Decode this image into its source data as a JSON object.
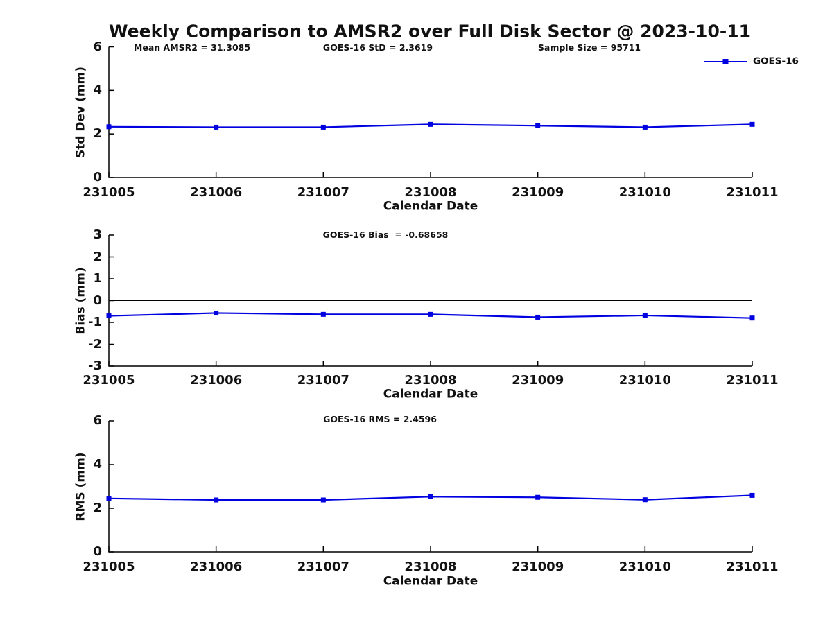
{
  "title": "Weekly Comparison to AMSR2 over Full Disk Sector @ 2023-10-11",
  "legend": {
    "label": "GOES-16",
    "position": "top-right-outside",
    "marker": "filled-square"
  },
  "colors": {
    "series_line": "#0000e0",
    "axis": "#000000",
    "zero_line": "#000000",
    "text": "#111111",
    "background": "#ffffff"
  },
  "chart_data": [
    {
      "type": "line",
      "annotations": [
        "Mean AMSR2 = 31.3085",
        "GOES-16 StD = 2.3619",
        "Sample Size = 95711"
      ],
      "ylabel": "Std Dev (mm)",
      "xlabel": "Calendar Date",
      "ylim": [
        0,
        6
      ],
      "yticks": [
        0,
        2,
        4,
        6
      ],
      "grid": false,
      "zero_line": false,
      "categories": [
        "231005",
        "231006",
        "231007",
        "231008",
        "231009",
        "231010",
        "231011"
      ],
      "series": [
        {
          "name": "GOES-16",
          "values": [
            2.33,
            2.31,
            2.31,
            2.44,
            2.38,
            2.31,
            2.44
          ]
        }
      ]
    },
    {
      "type": "line",
      "annotations": [
        "GOES-16 Bias  = -0.68658"
      ],
      "ylabel": "Bias (mm)",
      "xlabel": "Calendar Date",
      "ylim": [
        -3,
        3
      ],
      "yticks": [
        -3,
        -2,
        -1,
        0,
        1,
        2,
        3
      ],
      "grid": false,
      "zero_line": true,
      "categories": [
        "231005",
        "231006",
        "231007",
        "231008",
        "231009",
        "231010",
        "231011"
      ],
      "series": [
        {
          "name": "GOES-16",
          "values": [
            -0.7,
            -0.57,
            -0.63,
            -0.63,
            -0.76,
            -0.68,
            -0.8
          ]
        }
      ]
    },
    {
      "type": "line",
      "annotations": [
        "GOES-16 RMS = 2.4596"
      ],
      "ylabel": "RMS (mm)",
      "xlabel": "Calendar Date",
      "ylim": [
        0,
        6
      ],
      "yticks": [
        0,
        2,
        4,
        6
      ],
      "grid": false,
      "zero_line": false,
      "categories": [
        "231005",
        "231006",
        "231007",
        "231008",
        "231009",
        "231010",
        "231011"
      ],
      "series": [
        {
          "name": "GOES-16",
          "values": [
            2.45,
            2.38,
            2.38,
            2.53,
            2.5,
            2.39,
            2.59
          ]
        }
      ]
    }
  ]
}
